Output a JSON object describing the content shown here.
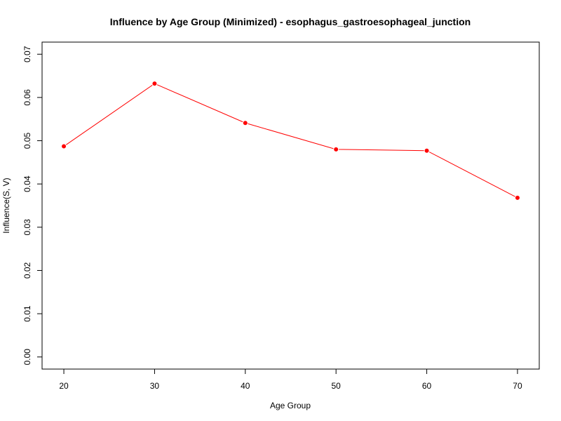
{
  "chart_data": {
    "type": "line",
    "title": "Influence by Age Group (Minimized) - esophagus_gastroesophageal_junction",
    "xlabel": "Age Group",
    "ylabel": "Influence(S, V)",
    "x": [
      20,
      30,
      40,
      50,
      60,
      70
    ],
    "x_ticks": [
      "20",
      "30",
      "40",
      "50",
      "60",
      "70"
    ],
    "xlim": [
      17.6,
      72.4
    ],
    "y_ticks": [
      "0.00",
      "0.01",
      "0.02",
      "0.03",
      "0.04",
      "0.05",
      "0.06",
      "0.07"
    ],
    "ylim": [
      -0.0028,
      0.0728
    ],
    "series": [
      {
        "values": [
          0.0487,
          0.0632,
          0.0541,
          0.048,
          0.0477,
          0.0368
        ],
        "color": "#ff0000"
      }
    ],
    "grid": false,
    "legend": "none"
  }
}
